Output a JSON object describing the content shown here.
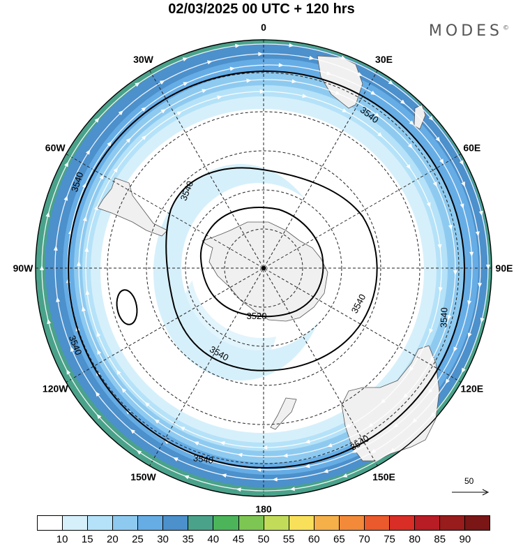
{
  "title": "02/03/2025  00 UTC  + 120 hrs",
  "brand": "MODES",
  "brand_mark": "©",
  "longitude_labels": [
    {
      "text": "0",
      "lon": 0
    },
    {
      "text": "30E",
      "lon": 30
    },
    {
      "text": "60E",
      "lon": 60
    },
    {
      "text": "90E",
      "lon": 90
    },
    {
      "text": "120E",
      "lon": 120
    },
    {
      "text": "150E",
      "lon": 150
    },
    {
      "text": "180",
      "lon": 180
    },
    {
      "text": "150W",
      "lon": -150
    },
    {
      "text": "120W",
      "lon": -120
    },
    {
      "text": "90W",
      "lon": -90
    },
    {
      "text": "60W",
      "lon": -60
    },
    {
      "text": "30W",
      "lon": -30
    }
  ],
  "contour_labels": [
    "3540",
    "3540",
    "3540",
    "3540",
    "3540",
    "3540",
    "3540",
    "3540",
    "3540",
    "3520"
  ],
  "reference_vector": {
    "label": "50"
  },
  "colorbar": {
    "labels": [
      "10",
      "15",
      "20",
      "25",
      "30",
      "35",
      "40",
      "45",
      "50",
      "55",
      "60",
      "65",
      "70",
      "75",
      "80",
      "85",
      "90"
    ],
    "colors": [
      "#ffffff",
      "#d6f0fb",
      "#b5e2f8",
      "#8ecaf0",
      "#66ade6",
      "#4c90cc",
      "#4aa28a",
      "#4cb55a",
      "#7dc653",
      "#c2dc5a",
      "#f8e05a",
      "#f6b04a",
      "#f28a3a",
      "#ea5a2c",
      "#d82e26",
      "#b81c24",
      "#981c1c",
      "#7a1616"
    ]
  }
}
